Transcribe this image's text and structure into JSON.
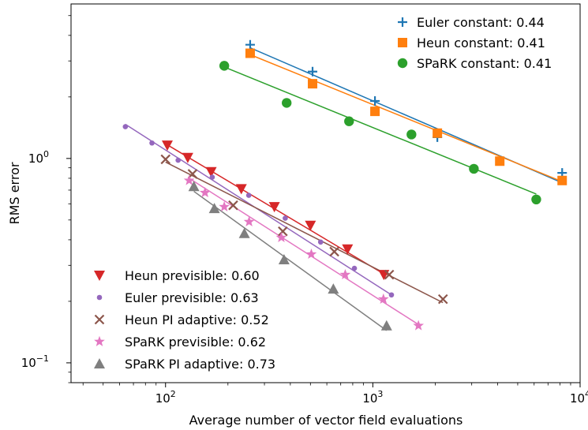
{
  "chart_data": {
    "type": "scatter",
    "xlabel": "Average number of vector field evaluations",
    "ylabel": "RMS error",
    "xscale": "log",
    "yscale": "log",
    "xlim": [
      35,
      10000
    ],
    "ylim": [
      0.08,
      5.7
    ],
    "grid": false,
    "x_tick_labels": [
      {
        "value": 100,
        "base": "10",
        "exp": "2"
      },
      {
        "value": 1000,
        "base": "10",
        "exp": "3"
      },
      {
        "value": 10000,
        "base": "10",
        "exp": "4"
      }
    ],
    "y_tick_labels": [
      {
        "value": 0.1,
        "base": "10",
        "exp": "−1"
      },
      {
        "value": 1,
        "base": "10",
        "exp": "0"
      }
    ],
    "legends": [
      {
        "placement": "top-right",
        "entries": [
          "Euler constant: 0.44",
          "Heun constant: 0.41",
          "SPaRK constant: 0.41"
        ]
      },
      {
        "placement": "bottom-left",
        "entries": [
          "Heun previsible: 0.60",
          "Euler previsible: 0.63",
          "Heun PI adaptive: 0.52",
          "SPaRK previsible: 0.62",
          "SPaRK PI adaptive: 0.73"
        ]
      }
    ],
    "series": [
      {
        "name": "Euler constant: 0.44",
        "color": "#1f77b4",
        "marker": "plus",
        "x": [
          256,
          512,
          1024,
          2048,
          8192
        ],
        "y": [
          3.6,
          2.66,
          1.91,
          1.27,
          0.85
        ],
        "fit": {
          "x": [
            256,
            8192
          ],
          "y": [
            3.48,
            0.76
          ]
        }
      },
      {
        "name": "Heun constant: 0.41",
        "color": "#ff7f0e",
        "marker": "square",
        "x": [
          256,
          512,
          1024,
          2048,
          4096,
          8192
        ],
        "y": [
          3.27,
          2.32,
          1.7,
          1.33,
          0.97,
          0.78
        ],
        "fit": {
          "x": [
            256,
            8192
          ],
          "y": [
            3.22,
            0.77
          ]
        }
      },
      {
        "name": "SPaRK constant: 0.41",
        "color": "#2ca02c",
        "marker": "circle",
        "x": [
          192,
          384,
          768,
          1536,
          3072,
          6144
        ],
        "y": [
          2.84,
          1.87,
          1.52,
          1.31,
          0.89,
          0.63
        ],
        "fit": {
          "x": [
            192,
            6144
          ],
          "y": [
            2.8,
            0.67
          ]
        }
      },
      {
        "name": "Heun previsible: 0.60",
        "color": "#d62728",
        "marker": "triangle-down",
        "x": [
          102,
          128,
          166,
          232,
          335,
          500,
          755,
          1130
        ],
        "y": [
          1.16,
          1.01,
          0.86,
          0.71,
          0.58,
          0.47,
          0.36,
          0.27
        ],
        "fit": {
          "x": [
            100,
            1160
          ],
          "y": [
            1.18,
            0.268
          ]
        }
      },
      {
        "name": "Euler previsible: 0.63",
        "color": "#9467bd",
        "marker": "dot",
        "x": [
          64,
          86,
          115,
          168,
          252,
          378,
          560,
          815,
          1230
        ],
        "y": [
          1.43,
          1.19,
          0.98,
          0.81,
          0.66,
          0.51,
          0.39,
          0.29,
          0.215
        ],
        "fit": {
          "x": [
            64,
            1230
          ],
          "y": [
            1.47,
            0.215
          ]
        }
      },
      {
        "name": "Heun PI adaptive: 0.52",
        "color": "#8c564b",
        "marker": "x",
        "x": [
          100,
          135,
          212,
          368,
          652,
          1200,
          2180
        ],
        "y": [
          0.99,
          0.84,
          0.59,
          0.44,
          0.35,
          0.27,
          0.205
        ],
        "fit": {
          "x": [
            100,
            2180
          ],
          "y": [
            0.96,
            0.197
          ]
        }
      },
      {
        "name": "SPaRK previsible: 0.62",
        "color": "#e377c2",
        "marker": "star",
        "x": [
          130,
          155,
          192,
          253,
          362,
          505,
          736,
          1125,
          1660
        ],
        "y": [
          0.78,
          0.68,
          0.58,
          0.49,
          0.41,
          0.34,
          0.27,
          0.205,
          0.152
        ],
        "fit": {
          "x": [
            130,
            1660
          ],
          "y": [
            0.8,
            0.154
          ]
        }
      },
      {
        "name": "SPaRK PI adaptive: 0.73",
        "color": "#7f7f7f",
        "marker": "triangle-up",
        "x": [
          137,
          172,
          240,
          373,
          645,
          1165
        ],
        "y": [
          0.73,
          0.57,
          0.43,
          0.32,
          0.23,
          0.152
        ],
        "fit": {
          "x": [
            137,
            1165
          ],
          "y": [
            0.69,
            0.144
          ]
        }
      }
    ]
  }
}
